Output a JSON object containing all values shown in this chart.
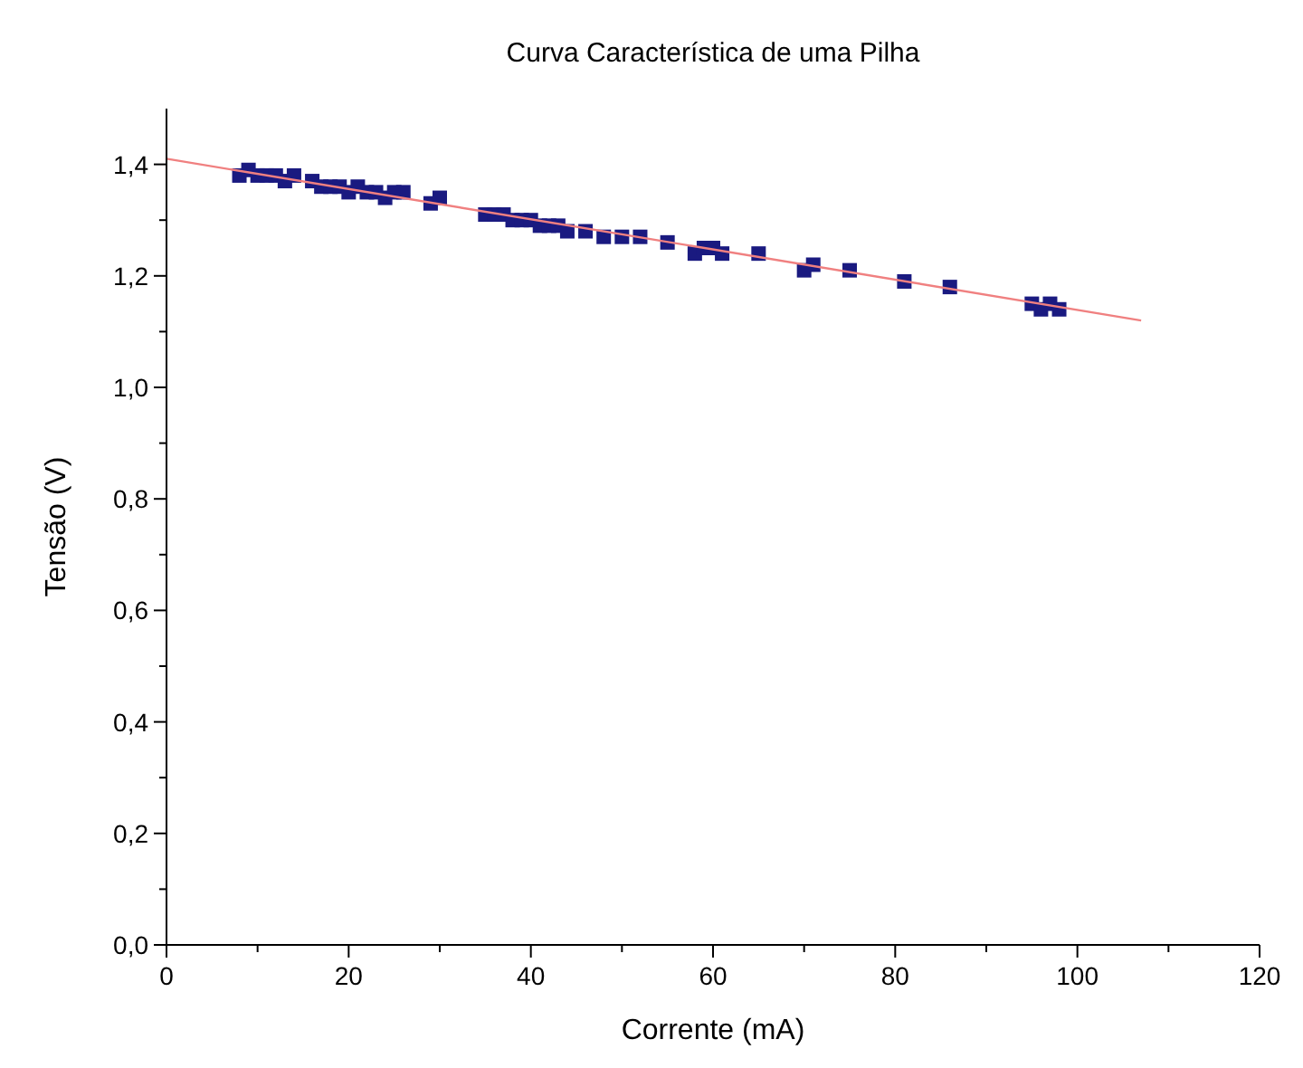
{
  "chart_data": {
    "type": "scatter",
    "title": "Curva Característica de uma Pilha",
    "xlabel": "Corrente (mA)",
    "ylabel": "Tensão (V)",
    "xlim": [
      0,
      120
    ],
    "ylim": [
      0,
      1.5
    ],
    "xticks": [
      {
        "value": 0,
        "label": "0"
      },
      {
        "value": 10,
        "label": null
      },
      {
        "value": 20,
        "label": "20"
      },
      {
        "value": 30,
        "label": null
      },
      {
        "value": 40,
        "label": "40"
      },
      {
        "value": 50,
        "label": null
      },
      {
        "value": 60,
        "label": "60"
      },
      {
        "value": 70,
        "label": null
      },
      {
        "value": 80,
        "label": "80"
      },
      {
        "value": 90,
        "label": null
      },
      {
        "value": 100,
        "label": "100"
      },
      {
        "value": 110,
        "label": null
      },
      {
        "value": 120,
        "label": "120"
      }
    ],
    "yticks": [
      {
        "value": 0,
        "label": "0,0"
      },
      {
        "value": 0.1,
        "label": null
      },
      {
        "value": 0.2,
        "label": "0,2"
      },
      {
        "value": 0.3,
        "label": null
      },
      {
        "value": 0.4,
        "label": "0,4"
      },
      {
        "value": 0.5,
        "label": null
      },
      {
        "value": 0.6,
        "label": "0,6"
      },
      {
        "value": 0.7,
        "label": null
      },
      {
        "value": 0.8,
        "label": "0,8"
      },
      {
        "value": 0.9,
        "label": null
      },
      {
        "value": 1.0,
        "label": "1,0"
      },
      {
        "value": 1.1,
        "label": null
      },
      {
        "value": 1.2,
        "label": "1,2"
      },
      {
        "value": 1.3,
        "label": null
      },
      {
        "value": 1.4,
        "label": "1,4"
      }
    ],
    "grid": false,
    "marker": "square",
    "series": [
      {
        "type": "scatter",
        "color": "#1a1a80",
        "x": [
          8,
          9,
          10,
          11,
          12,
          13,
          14,
          16,
          17,
          18,
          19,
          20,
          21,
          22,
          23,
          24,
          25,
          26,
          29,
          30,
          35,
          36,
          37,
          38,
          39,
          40,
          41,
          42,
          43,
          44,
          46,
          48,
          50,
          52,
          55,
          58,
          59,
          60,
          61,
          65,
          70,
          71,
          75,
          81,
          86,
          95,
          96,
          97,
          98
        ],
        "values": [
          1.38,
          1.39,
          1.38,
          1.38,
          1.38,
          1.37,
          1.38,
          1.37,
          1.36,
          1.36,
          1.36,
          1.35,
          1.36,
          1.35,
          1.35,
          1.34,
          1.35,
          1.35,
          1.33,
          1.34,
          1.31,
          1.31,
          1.31,
          1.3,
          1.3,
          1.3,
          1.29,
          1.29,
          1.29,
          1.28,
          1.28,
          1.27,
          1.27,
          1.27,
          1.26,
          1.24,
          1.25,
          1.25,
          1.24,
          1.24,
          1.21,
          1.22,
          1.21,
          1.19,
          1.18,
          1.15,
          1.14,
          1.15,
          1.14
        ]
      },
      {
        "type": "line",
        "color": "#f08080",
        "marker": "none",
        "x": [
          0,
          107
        ],
        "values": [
          1.41,
          1.12
        ]
      }
    ]
  }
}
